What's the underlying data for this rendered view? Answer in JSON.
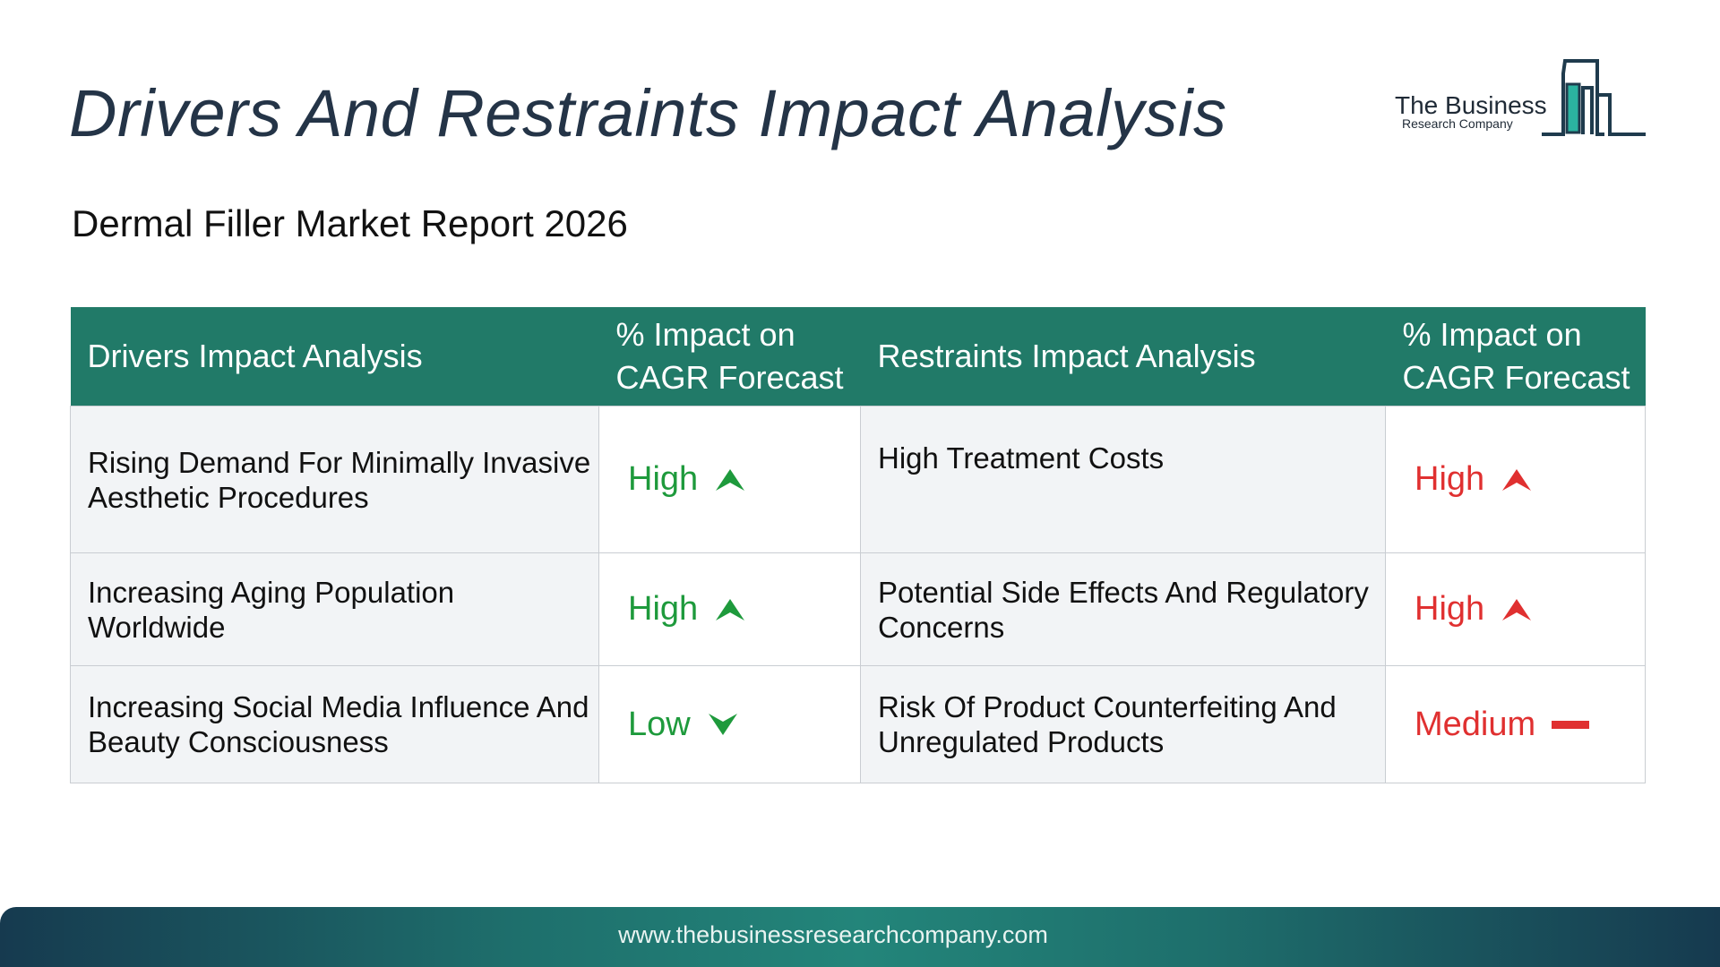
{
  "title": "Drivers And Restraints Impact Analysis",
  "subtitle": "Dermal Filler Market Report 2026",
  "logo": {
    "line1": "The Business",
    "line2": "Research Company"
  },
  "table": {
    "headers": [
      "Drivers Impact Analysis",
      "% Impact on CAGR Forecast",
      "Restraints Impact Analysis",
      "% Impact on CAGR Forecast"
    ],
    "rows": [
      {
        "driver": "Rising Demand For Minimally Invasive Aesthetic Procedures",
        "driver_impact": "High",
        "restraint": "High Treatment Costs",
        "restraint_impact": "High"
      },
      {
        "driver": "Increasing Aging Population Worldwide",
        "driver_impact": "High",
        "restraint": "Potential Side Effects And Regulatory Concerns",
        "restraint_impact": "High"
      },
      {
        "driver": "Increasing Social Media Influence And Beauty Consciousness",
        "driver_impact": "Low",
        "restraint": "Risk Of Product Counterfeiting And Unregulated Products",
        "restraint_impact": "Medium"
      }
    ]
  },
  "colors": {
    "header_bg": "#217a68",
    "driver_impact": "#1e9a3c",
    "restraint_impact": "#e03030",
    "title": "#243447"
  },
  "icons": {
    "up": "triangle-up-icon",
    "down": "chevron-down-icon",
    "medium": "dash-icon"
  },
  "footer": {
    "url": "www.thebusinessresearchcompany.com"
  }
}
